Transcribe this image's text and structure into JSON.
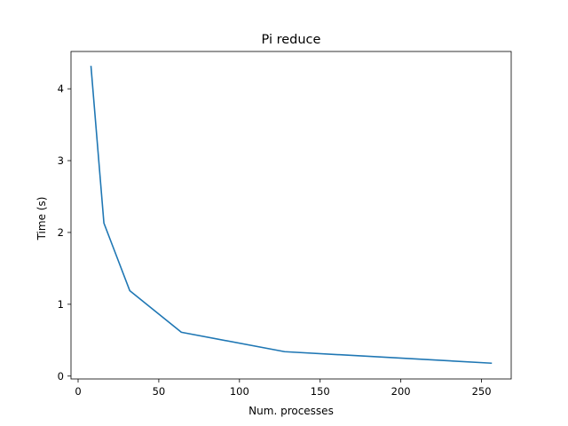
{
  "chart_data": {
    "type": "line",
    "title": "Pi reduce",
    "xlabel": "Num. processes",
    "ylabel": "Time (s)",
    "xlim": [
      -4.4,
      268.4
    ],
    "ylim": [
      -0.04,
      4.52
    ],
    "xticks": [
      0,
      50,
      100,
      150,
      200,
      250
    ],
    "yticks": [
      0,
      1,
      2,
      3,
      4
    ],
    "grid": false,
    "series": [
      {
        "color": "#1f77b4",
        "x": [
          8,
          16,
          32,
          64,
          128,
          256
        ],
        "y": [
          4.31,
          2.13,
          1.19,
          0.61,
          0.34,
          0.18
        ]
      }
    ]
  }
}
